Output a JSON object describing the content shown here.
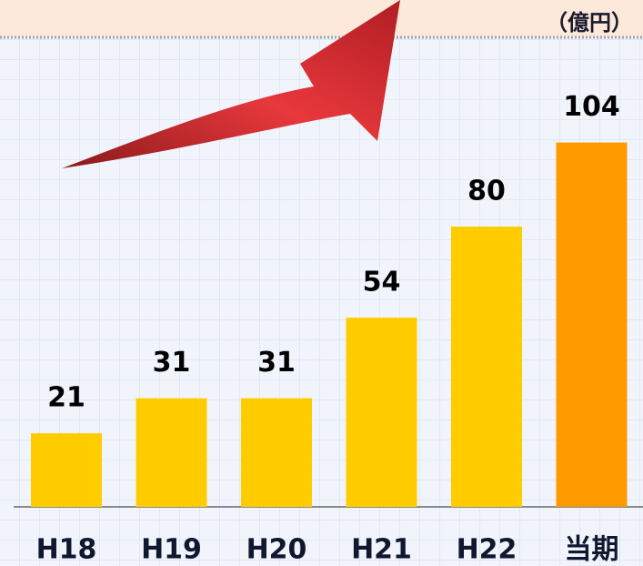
{
  "chart_data": {
    "type": "bar",
    "unit_label": "（億円）",
    "categories": [
      "H18",
      "H19",
      "H20",
      "H21",
      "H22",
      "当期"
    ],
    "values": [
      21,
      31,
      31,
      54,
      80,
      104
    ],
    "colors": [
      "#ffcc00",
      "#ffcc00",
      "#ffcc00",
      "#ffcc00",
      "#ffcc00",
      "#ff9900"
    ]
  }
}
